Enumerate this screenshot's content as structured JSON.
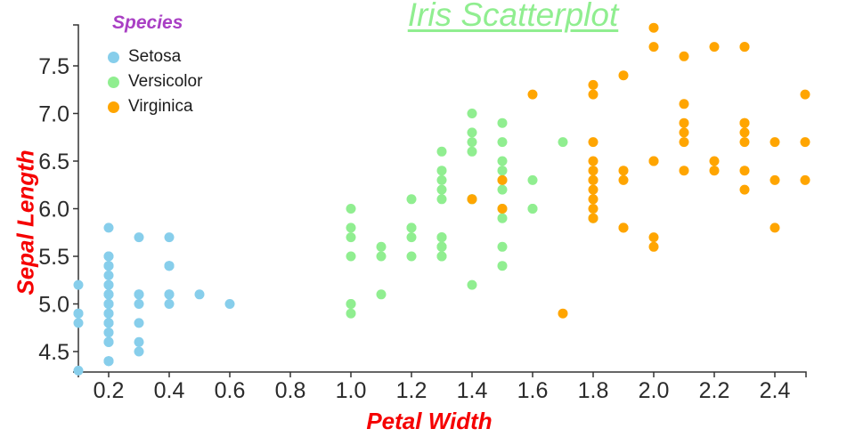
{
  "title": {
    "text": "Iris Scatterplot"
  },
  "legend": {
    "title": "Species",
    "items": [
      {
        "label": "Setosa",
        "color": "#87CEEB"
      },
      {
        "label": "Versicolor",
        "color": "#90EE90"
      },
      {
        "label": "Virginica",
        "color": "#FFA500"
      }
    ]
  },
  "axes": {
    "x": {
      "label": "Petal Width",
      "ticks": [
        "0.2",
        "0.4",
        "0.6",
        "0.8",
        "1.0",
        "1.2",
        "1.4",
        "1.6",
        "1.8",
        "2.0",
        "2.2",
        "2.4"
      ]
    },
    "y": {
      "label": "Sepal Length",
      "ticks": [
        "4.5",
        "5.0",
        "5.5",
        "6.0",
        "6.5",
        "7.0",
        "7.5"
      ]
    }
  },
  "colors": {
    "title_green": "#90EE90",
    "legend_title_purple": "#A93FC4",
    "axis_label_red": "#F50000",
    "axis_line": "#333333",
    "tick_text": "#2b2b2b"
  },
  "chart_data": {
    "type": "scatter",
    "title": "Iris Scatterplot",
    "xlabel": "Petal Width",
    "ylabel": "Sepal Length",
    "x_range": [
      0.1,
      2.5
    ],
    "y_range": [
      4.28,
      7.93
    ],
    "x_tick_values": [
      0.2,
      0.4,
      0.6,
      0.8,
      1.0,
      1.2,
      1.4,
      1.6,
      1.8,
      2.0,
      2.2,
      2.4
    ],
    "y_tick_values": [
      4.5,
      5.0,
      5.5,
      6.0,
      6.5,
      7.0,
      7.5
    ],
    "grid": false,
    "legend_position": "top-left",
    "marker_radius_px": 5.5,
    "series": [
      {
        "name": "Setosa",
        "color": "#87CEEB",
        "points": [
          [
            0.2,
            5.1
          ],
          [
            0.2,
            4.9
          ],
          [
            0.2,
            4.7
          ],
          [
            0.2,
            4.6
          ],
          [
            0.2,
            5.0
          ],
          [
            0.4,
            5.4
          ],
          [
            0.3,
            4.6
          ],
          [
            0.2,
            5.0
          ],
          [
            0.2,
            4.4
          ],
          [
            0.1,
            4.9
          ],
          [
            0.2,
            5.4
          ],
          [
            0.2,
            4.8
          ],
          [
            0.1,
            4.8
          ],
          [
            0.1,
            4.3
          ],
          [
            0.2,
            5.8
          ],
          [
            0.4,
            5.7
          ],
          [
            0.4,
            5.4
          ],
          [
            0.3,
            5.1
          ],
          [
            0.3,
            5.7
          ],
          [
            0.3,
            5.1
          ],
          [
            0.2,
            5.4
          ],
          [
            0.4,
            5.1
          ],
          [
            0.2,
            4.6
          ],
          [
            0.5,
            5.1
          ],
          [
            0.2,
            4.8
          ],
          [
            0.2,
            5.0
          ],
          [
            0.4,
            5.0
          ],
          [
            0.2,
            5.2
          ],
          [
            0.2,
            5.2
          ],
          [
            0.2,
            4.7
          ],
          [
            0.2,
            4.8
          ],
          [
            0.4,
            5.4
          ],
          [
            0.1,
            5.2
          ],
          [
            0.2,
            5.5
          ],
          [
            0.2,
            4.9
          ],
          [
            0.2,
            5.0
          ],
          [
            0.2,
            5.5
          ],
          [
            0.1,
            4.9
          ],
          [
            0.2,
            4.4
          ],
          [
            0.2,
            5.1
          ],
          [
            0.3,
            5.0
          ],
          [
            0.3,
            4.5
          ],
          [
            0.2,
            4.4
          ],
          [
            0.6,
            5.0
          ],
          [
            0.4,
            5.1
          ],
          [
            0.3,
            4.8
          ],
          [
            0.2,
            5.1
          ],
          [
            0.2,
            4.6
          ],
          [
            0.2,
            5.3
          ],
          [
            0.2,
            5.0
          ]
        ]
      },
      {
        "name": "Versicolor",
        "color": "#90EE90",
        "points": [
          [
            1.4,
            7.0
          ],
          [
            1.5,
            6.4
          ],
          [
            1.5,
            6.9
          ],
          [
            1.3,
            5.5
          ],
          [
            1.5,
            6.5
          ],
          [
            1.3,
            5.7
          ],
          [
            1.6,
            6.3
          ],
          [
            1.0,
            4.9
          ],
          [
            1.3,
            6.6
          ],
          [
            1.4,
            5.2
          ],
          [
            1.0,
            5.0
          ],
          [
            1.5,
            5.9
          ],
          [
            1.0,
            6.0
          ],
          [
            1.4,
            6.1
          ],
          [
            1.3,
            5.6
          ],
          [
            1.4,
            6.7
          ],
          [
            1.5,
            5.6
          ],
          [
            1.0,
            5.8
          ],
          [
            1.5,
            6.2
          ],
          [
            1.1,
            5.6
          ],
          [
            1.8,
            5.9
          ],
          [
            1.3,
            6.1
          ],
          [
            1.5,
            6.3
          ],
          [
            1.2,
            6.1
          ],
          [
            1.3,
            6.4
          ],
          [
            1.4,
            6.6
          ],
          [
            1.4,
            6.8
          ],
          [
            1.7,
            6.7
          ],
          [
            1.5,
            6.0
          ],
          [
            1.0,
            5.7
          ],
          [
            1.1,
            5.5
          ],
          [
            1.0,
            5.5
          ],
          [
            1.2,
            5.8
          ],
          [
            1.6,
            6.0
          ],
          [
            1.5,
            5.4
          ],
          [
            1.6,
            6.0
          ],
          [
            1.5,
            6.7
          ],
          [
            1.3,
            6.3
          ],
          [
            1.3,
            5.6
          ],
          [
            1.3,
            5.5
          ],
          [
            1.2,
            5.5
          ],
          [
            1.4,
            6.1
          ],
          [
            1.2,
            5.8
          ],
          [
            1.0,
            5.0
          ],
          [
            1.3,
            5.6
          ],
          [
            1.2,
            5.7
          ],
          [
            1.3,
            5.7
          ],
          [
            1.3,
            6.2
          ],
          [
            1.1,
            5.1
          ],
          [
            1.3,
            5.7
          ]
        ]
      },
      {
        "name": "Virginica",
        "color": "#FFA500",
        "points": [
          [
            2.5,
            6.3
          ],
          [
            1.9,
            5.8
          ],
          [
            2.1,
            7.1
          ],
          [
            1.8,
            6.3
          ],
          [
            2.2,
            6.5
          ],
          [
            2.1,
            7.6
          ],
          [
            1.7,
            4.9
          ],
          [
            1.8,
            7.3
          ],
          [
            1.8,
            6.7
          ],
          [
            2.5,
            7.2
          ],
          [
            2.0,
            6.5
          ],
          [
            1.9,
            6.4
          ],
          [
            2.1,
            6.8
          ],
          [
            2.0,
            5.7
          ],
          [
            2.4,
            5.8
          ],
          [
            2.3,
            6.4
          ],
          [
            1.8,
            6.5
          ],
          [
            2.2,
            7.7
          ],
          [
            2.3,
            7.7
          ],
          [
            1.5,
            6.0
          ],
          [
            2.3,
            6.9
          ],
          [
            2.0,
            5.6
          ],
          [
            2.0,
            7.7
          ],
          [
            1.8,
            6.3
          ],
          [
            2.1,
            6.7
          ],
          [
            1.8,
            7.2
          ],
          [
            1.8,
            6.2
          ],
          [
            1.8,
            6.1
          ],
          [
            2.1,
            6.4
          ],
          [
            1.6,
            7.2
          ],
          [
            1.9,
            7.4
          ],
          [
            2.0,
            7.9
          ],
          [
            2.2,
            6.4
          ],
          [
            1.5,
            6.3
          ],
          [
            1.4,
            6.1
          ],
          [
            2.3,
            7.7
          ],
          [
            2.4,
            6.3
          ],
          [
            1.8,
            6.4
          ],
          [
            1.8,
            6.0
          ],
          [
            2.1,
            6.9
          ],
          [
            2.4,
            6.7
          ],
          [
            2.3,
            6.9
          ],
          [
            1.9,
            5.8
          ],
          [
            2.3,
            6.8
          ],
          [
            2.5,
            6.7
          ],
          [
            2.3,
            6.7
          ],
          [
            1.9,
            6.3
          ],
          [
            2.0,
            6.5
          ],
          [
            2.3,
            6.2
          ],
          [
            1.8,
            5.9
          ]
        ]
      }
    ]
  }
}
